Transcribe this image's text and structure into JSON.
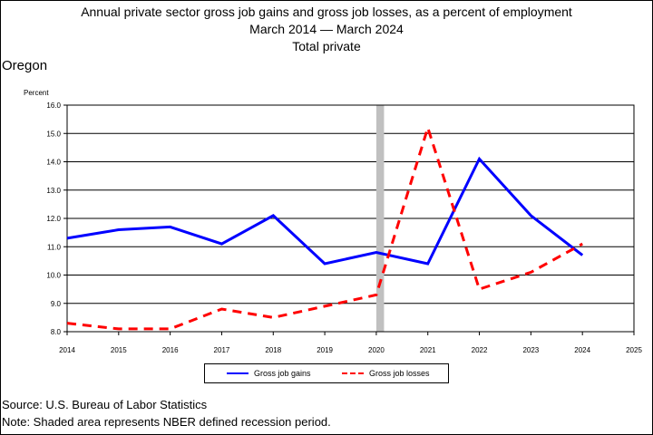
{
  "title": {
    "line1": "Annual private sector gross job gains and gross job losses, as a percent of employment",
    "line2": "March 2014 — March 2024",
    "line3": "Total private"
  },
  "region": "Oregon",
  "footer": {
    "source": "Source: U.S. Bureau of Labor Statistics",
    "note": "Note: Shaded area represents NBER defined recession period."
  },
  "chart_data": {
    "type": "line",
    "ylabel": "Percent",
    "xlim": [
      2014,
      2025
    ],
    "ylim": [
      8.0,
      16.0
    ],
    "x_ticks": [
      "2014",
      "2015",
      "2016",
      "2017",
      "2018",
      "2019",
      "2020",
      "2021",
      "2022",
      "2023",
      "2024",
      "2025"
    ],
    "y_ticks": [
      "8.0",
      "9.0",
      "10.0",
      "11.0",
      "12.0",
      "13.0",
      "14.0",
      "15.0",
      "16.0"
    ],
    "grid": true,
    "legend_position": "bottom-center",
    "recession_shading": [
      2020.0,
      2020.15
    ],
    "x": [
      2014,
      2015,
      2016,
      2017,
      2018,
      2019,
      2020,
      2021,
      2022,
      2023,
      2024
    ],
    "series": [
      {
        "name": "Gross job gains",
        "color": "#0000ff",
        "style": "solid",
        "values": [
          11.3,
          11.6,
          11.7,
          11.1,
          12.1,
          10.4,
          10.8,
          10.4,
          14.1,
          12.1,
          10.7
        ]
      },
      {
        "name": "Gross job losses",
        "color": "#ff0000",
        "style": "dashed",
        "values": [
          8.3,
          8.1,
          8.1,
          8.8,
          8.5,
          8.9,
          9.3,
          15.2,
          9.5,
          10.1,
          11.1
        ]
      }
    ]
  }
}
